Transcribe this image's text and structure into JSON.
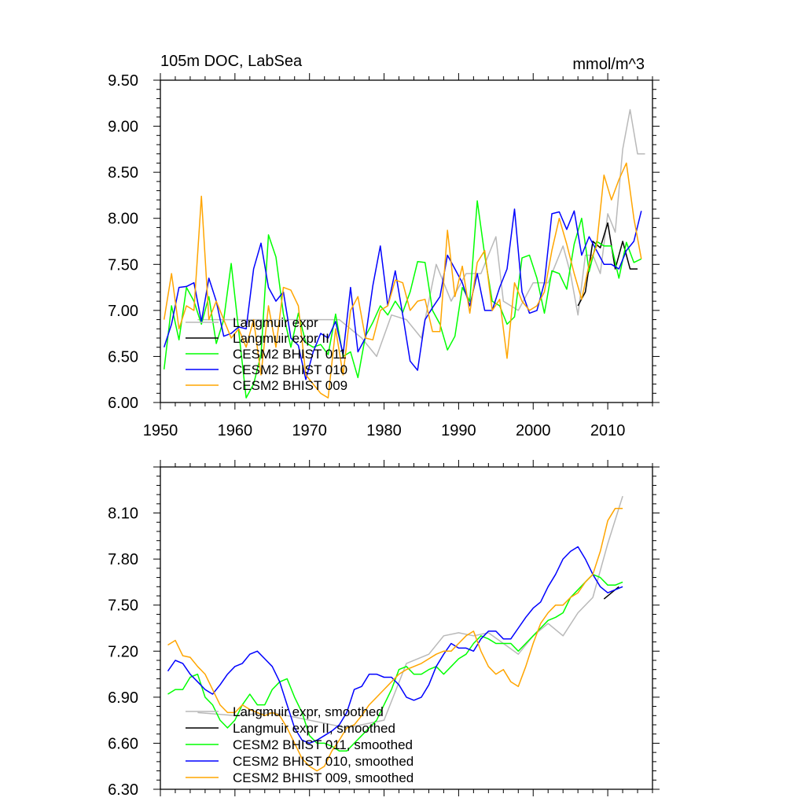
{
  "chart_data": [
    {
      "type": "line",
      "title": "105m DOC, LabSea",
      "units": "mmol/m^3",
      "xlim": [
        1950,
        2016
      ],
      "ylim": [
        6.0,
        9.5
      ],
      "xticks": [
        1950,
        1960,
        1970,
        1980,
        1990,
        2000,
        2010
      ],
      "xtick_labels": [
        "1950",
        "1960",
        "1970",
        "1980",
        "1990",
        "2000",
        "2010"
      ],
      "yticks": [
        6.0,
        6.5,
        7.0,
        7.5,
        8.0,
        8.5,
        9.0,
        9.5
      ],
      "ytick_labels": [
        "6.00",
        "6.50",
        "7.00",
        "7.50",
        "8.00",
        "8.50",
        "9.00",
        "9.50"
      ],
      "legend_position": "lower-left",
      "series": [
        {
          "name": "Langmuir expr",
          "color": "#b9b9b9",
          "x": [
            1955,
            1960,
            1965,
            1970,
            1974,
            1977,
            1979,
            1981,
            1983,
            1985,
            1987,
            1989,
            1991,
            1993,
            1995,
            1996,
            1998,
            2000,
            2002,
            2003,
            2004,
            2005,
            2006,
            2007,
            2008,
            2009,
            2010,
            2011,
            2012,
            2013,
            2014,
            2015
          ],
          "y": [
            6.9,
            6.9,
            6.9,
            6.9,
            6.9,
            6.7,
            6.5,
            6.95,
            6.9,
            6.7,
            7.5,
            7.1,
            7.4,
            7.4,
            7.8,
            7.1,
            7.0,
            7.3,
            7.3,
            7.5,
            7.7,
            7.4,
            6.95,
            7.6,
            7.6,
            7.4,
            8.05,
            7.85,
            8.75,
            9.18,
            8.7,
            8.7
          ]
        },
        {
          "name": "Langmuir expr II",
          "color": "#000000",
          "x": [
            2006,
            2007,
            2008,
            2009,
            2010,
            2011,
            2012,
            2013,
            2014
          ],
          "y": [
            7.05,
            7.2,
            7.75,
            7.68,
            7.95,
            7.45,
            7.75,
            7.45,
            7.45
          ]
        },
        {
          "name": "CESM2 BHIST 011",
          "color": "#00ff00",
          "x": [
            1950.5,
            1951.5,
            1952.5,
            1953.5,
            1954.5,
            1955.5,
            1956.5,
            1957.5,
            1958.5,
            1959.5,
            1960.5,
            1961.5,
            1962.5,
            1963.5,
            1964.5,
            1965.5,
            1966.5,
            1967.5,
            1968.5,
            1969.5,
            1970.5,
            1971.5,
            1972.5,
            1973.5,
            1974.5,
            1975.5,
            1976.5,
            1977.5,
            1978.5,
            1979.5,
            1980.5,
            1981.5,
            1982.5,
            1983.5,
            1984.5,
            1985.5,
            1986.5,
            1987.5,
            1988.5,
            1989.5,
            1990.5,
            1991.5,
            1992.5,
            1993.5,
            1994.5,
            1995.5,
            1996.5,
            1997.5,
            1998.5,
            1999.5,
            2000.5,
            2001.5,
            2002.5,
            2003.5,
            2004.5,
            2005.5,
            2006.5,
            2007.5,
            2008.5,
            2009.5,
            2010.5,
            2011.5,
            2012.5,
            2013.5,
            2014.5
          ],
          "y": [
            6.36,
            7.05,
            6.68,
            7.25,
            7.1,
            6.85,
            7.15,
            6.64,
            6.9,
            7.51,
            6.78,
            6.05,
            6.2,
            6.52,
            7.82,
            7.58,
            6.96,
            6.6,
            6.97,
            6.65,
            6.6,
            6.63,
            6.52,
            6.96,
            6.5,
            6.55,
            6.27,
            6.72,
            6.87,
            7.05,
            6.95,
            7.1,
            6.98,
            7.2,
            7.53,
            7.52,
            7.0,
            6.85,
            6.57,
            6.72,
            7.25,
            7.1,
            8.19,
            7.6,
            7.1,
            7.05,
            6.85,
            6.93,
            7.57,
            7.6,
            7.35,
            6.97,
            7.43,
            7.4,
            7.23,
            7.72,
            8.0,
            7.42,
            7.75,
            7.7,
            7.7,
            7.35,
            7.74,
            7.52,
            7.56
          ]
        },
        {
          "name": "CESM2 BHIST 010",
          "color": "#0000ff",
          "x": [
            1950.5,
            1951.5,
            1952.5,
            1953.5,
            1954.5,
            1955.5,
            1956.5,
            1957.5,
            1958.5,
            1959.5,
            1960.5,
            1961.5,
            1962.5,
            1963.5,
            1964.5,
            1965.5,
            1966.5,
            1967.5,
            1968.5,
            1969.5,
            1970.5,
            1971.5,
            1972.5,
            1973.5,
            1974.5,
            1975.5,
            1976.5,
            1977.5,
            1978.5,
            1979.5,
            1980.5,
            1981.5,
            1982.5,
            1983.5,
            1984.5,
            1985.5,
            1986.5,
            1987.5,
            1988.5,
            1989.5,
            1990.5,
            1991.5,
            1992.5,
            1993.5,
            1994.5,
            1995.5,
            1996.5,
            1997.5,
            1998.5,
            1999.5,
            2000.5,
            2001.5,
            2002.5,
            2003.5,
            2004.5,
            2005.5,
            2006.5,
            2007.5,
            2008.5,
            2009.5,
            2010.5,
            2011.5,
            2012.5,
            2013.5,
            2014.5
          ],
          "y": [
            6.6,
            6.85,
            7.25,
            7.26,
            7.3,
            6.88,
            7.35,
            7.1,
            6.72,
            6.75,
            6.82,
            6.8,
            7.45,
            7.73,
            7.25,
            7.1,
            7.2,
            6.7,
            6.62,
            6.25,
            6.55,
            6.75,
            6.7,
            6.88,
            6.52,
            7.25,
            6.55,
            6.7,
            7.27,
            7.7,
            7.05,
            7.43,
            6.95,
            6.45,
            6.35,
            6.9,
            7.03,
            7.15,
            7.6,
            7.45,
            7.3,
            7.05,
            7.4,
            7.0,
            7.0,
            7.25,
            7.45,
            8.1,
            7.2,
            6.97,
            7.0,
            7.3,
            8.05,
            8.07,
            7.88,
            8.08,
            7.6,
            7.8,
            7.65,
            7.5,
            7.5,
            7.45,
            7.65,
            7.75,
            8.08
          ]
        },
        {
          "name": "CESM2 BHIST 009",
          "color": "#ffa500",
          "x": [
            1950.5,
            1951.5,
            1952.5,
            1953.5,
            1954.5,
            1955.5,
            1956.5,
            1957.5,
            1958.5,
            1959.5,
            1960.5,
            1961.5,
            1962.5,
            1963.5,
            1964.5,
            1965.5,
            1966.5,
            1967.5,
            1968.5,
            1969.5,
            1970.5,
            1971.5,
            1972.5,
            1973.5,
            1974.5,
            1975.5,
            1976.5,
            1977.5,
            1978.5,
            1979.5,
            1980.5,
            1981.5,
            1982.5,
            1983.5,
            1984.5,
            1985.5,
            1986.5,
            1987.5,
            1988.5,
            1989.5,
            1990.5,
            1991.5,
            1992.5,
            1993.5,
            1994.5,
            1995.5,
            1996.5,
            1997.5,
            1998.5,
            1999.5,
            2000.5,
            2001.5,
            2002.5,
            2003.5,
            2004.5,
            2005.5,
            2006.5,
            2007.5,
            2008.5,
            2009.5,
            2010.5,
            2011.5,
            2012.5,
            2013.5,
            2014.5
          ],
          "y": [
            6.9,
            7.4,
            6.8,
            7.05,
            7.0,
            8.24,
            6.9,
            7.1,
            6.9,
            6.7,
            6.8,
            6.6,
            6.9,
            6.3,
            7.05,
            6.6,
            7.25,
            7.22,
            7.05,
            6.3,
            6.2,
            6.1,
            6.05,
            6.8,
            6.3,
            7.0,
            7.15,
            6.7,
            6.68,
            7.0,
            7.05,
            7.33,
            7.3,
            7.0,
            7.1,
            7.12,
            6.77,
            6.77,
            7.87,
            7.15,
            7.48,
            6.97,
            7.52,
            7.65,
            7.0,
            7.12,
            6.48,
            7.3,
            7.1,
            7.0,
            7.05,
            7.2,
            7.65,
            8.0,
            7.72,
            7.4,
            7.12,
            7.5,
            7.7,
            8.47,
            8.2,
            8.42,
            8.6,
            8.0,
            7.56
          ]
        }
      ]
    },
    {
      "type": "line",
      "xlim": [
        1950,
        2016
      ],
      "ylim": [
        6.3,
        8.4
      ],
      "yticks": [
        6.3,
        6.6,
        6.9,
        7.2,
        7.5,
        7.8,
        8.1
      ],
      "ytick_labels": [
        "6.30",
        "6.60",
        "6.90",
        "7.20",
        "7.50",
        "7.80",
        "8.10"
      ],
      "legend_position": "lower-left",
      "series": [
        {
          "name": "Langmuir expr, smoothed",
          "color": "#b9b9b9",
          "x": [
            1955,
            1960,
            1965,
            1970,
            1975,
            1980,
            1983,
            1986,
            1988,
            1990,
            1992,
            1994,
            1996,
            1998,
            2000,
            2002,
            2004,
            2006,
            2008,
            2010,
            2012
          ],
          "y": [
            6.8,
            6.78,
            6.8,
            6.75,
            6.7,
            6.75,
            7.12,
            7.18,
            7.3,
            7.32,
            7.3,
            7.32,
            7.25,
            7.18,
            7.3,
            7.38,
            7.3,
            7.45,
            7.55,
            7.9,
            8.21
          ]
        },
        {
          "name": "Langmuir expr II, smoothed",
          "color": "#000000",
          "x": [
            2009.5,
            2010.5,
            2011.5
          ],
          "y": [
            7.54,
            7.58,
            7.62
          ]
        },
        {
          "name": "CESM2 BHIST 011, smoothed",
          "color": "#00ff00",
          "x": [
            1951,
            1952,
            1953,
            1954,
            1955,
            1956,
            1957,
            1958,
            1959,
            1960,
            1961,
            1962,
            1963,
            1964,
            1965,
            1966,
            1967,
            1968,
            1969,
            1970,
            1971,
            1972,
            1973,
            1974,
            1975,
            1976,
            1977,
            1978,
            1979,
            1980,
            1981,
            1982,
            1983,
            1984,
            1985,
            1986,
            1987,
            1988,
            1989,
            1990,
            1991,
            1992,
            1993,
            1994,
            1995,
            1996,
            1997,
            1998,
            1999,
            2000,
            2001,
            2002,
            2003,
            2004,
            2005,
            2006,
            2007,
            2008,
            2009,
            2010,
            2011,
            2012
          ],
          "y": [
            6.92,
            6.95,
            6.95,
            7.03,
            7.05,
            6.9,
            6.85,
            6.75,
            6.7,
            6.75,
            6.85,
            6.92,
            6.85,
            6.85,
            6.95,
            7.0,
            7.02,
            6.9,
            6.8,
            6.65,
            6.6,
            6.6,
            6.58,
            6.55,
            6.55,
            6.6,
            6.65,
            6.7,
            6.75,
            6.85,
            6.95,
            7.08,
            7.1,
            7.05,
            7.05,
            7.08,
            7.1,
            7.05,
            7.1,
            7.15,
            7.18,
            7.25,
            7.3,
            7.28,
            7.25,
            7.25,
            7.25,
            7.2,
            7.25,
            7.3,
            7.35,
            7.4,
            7.42,
            7.45,
            7.55,
            7.6,
            7.65,
            7.7,
            7.68,
            7.63,
            7.63,
            7.65
          ]
        },
        {
          "name": "CESM2 BHIST 010, smoothed",
          "color": "#0000ff",
          "x": [
            1951,
            1952,
            1953,
            1954,
            1955,
            1956,
            1957,
            1958,
            1959,
            1960,
            1961,
            1962,
            1963,
            1964,
            1965,
            1966,
            1967,
            1968,
            1969,
            1970,
            1971,
            1972,
            1973,
            1974,
            1975,
            1976,
            1977,
            1978,
            1979,
            1980,
            1981,
            1982,
            1983,
            1984,
            1985,
            1986,
            1987,
            1988,
            1989,
            1990,
            1991,
            1992,
            1993,
            1994,
            1995,
            1996,
            1997,
            1998,
            1999,
            2000,
            2001,
            2002,
            2003,
            2004,
            2005,
            2006,
            2007,
            2008,
            2009,
            2010,
            2011,
            2012
          ],
          "y": [
            7.07,
            7.14,
            7.12,
            7.05,
            7.0,
            6.95,
            6.92,
            6.98,
            7.05,
            7.1,
            7.12,
            7.18,
            7.2,
            7.15,
            7.1,
            7.0,
            6.85,
            6.7,
            6.62,
            6.6,
            6.62,
            6.65,
            6.68,
            6.72,
            6.8,
            6.95,
            6.97,
            7.05,
            7.05,
            7.03,
            7.03,
            6.98,
            6.9,
            6.88,
            6.9,
            6.98,
            7.1,
            7.18,
            7.25,
            7.22,
            7.22,
            7.2,
            7.28,
            7.33,
            7.33,
            7.28,
            7.28,
            7.35,
            7.42,
            7.48,
            7.52,
            7.62,
            7.7,
            7.8,
            7.85,
            7.88,
            7.8,
            7.7,
            7.62,
            7.58,
            7.6,
            7.62
          ]
        },
        {
          "name": "CESM2 BHIST 009, smoothed",
          "color": "#ffa500",
          "x": [
            1951,
            1952,
            1953,
            1954,
            1955,
            1956,
            1957,
            1958,
            1959,
            1960,
            1961,
            1962,
            1963,
            1964,
            1965,
            1966,
            1967,
            1968,
            1969,
            1970,
            1971,
            1972,
            1973,
            1974,
            1975,
            1976,
            1977,
            1978,
            1979,
            1980,
            1981,
            1982,
            1983,
            1984,
            1985,
            1986,
            1987,
            1988,
            1989,
            1990,
            1991,
            1992,
            1993,
            1994,
            1995,
            1996,
            1997,
            1998,
            1999,
            2000,
            2001,
            2002,
            2003,
            2004,
            2005,
            2006,
            2007,
            2008,
            2009,
            2010,
            2011,
            2012
          ],
          "y": [
            7.24,
            7.27,
            7.17,
            7.16,
            7.1,
            7.05,
            6.95,
            6.85,
            6.8,
            6.8,
            6.85,
            6.82,
            6.8,
            6.78,
            6.8,
            6.78,
            6.7,
            6.6,
            6.5,
            6.45,
            6.42,
            6.45,
            6.55,
            6.62,
            6.7,
            6.72,
            6.78,
            6.85,
            6.9,
            6.95,
            7.0,
            7.05,
            7.08,
            7.1,
            7.12,
            7.15,
            7.18,
            7.2,
            7.2,
            7.25,
            7.3,
            7.33,
            7.2,
            7.1,
            7.05,
            7.08,
            7.0,
            6.97,
            7.1,
            7.25,
            7.38,
            7.45,
            7.5,
            7.5,
            7.55,
            7.58,
            7.65,
            7.7,
            7.85,
            8.05,
            8.13,
            8.13
          ]
        }
      ]
    }
  ]
}
